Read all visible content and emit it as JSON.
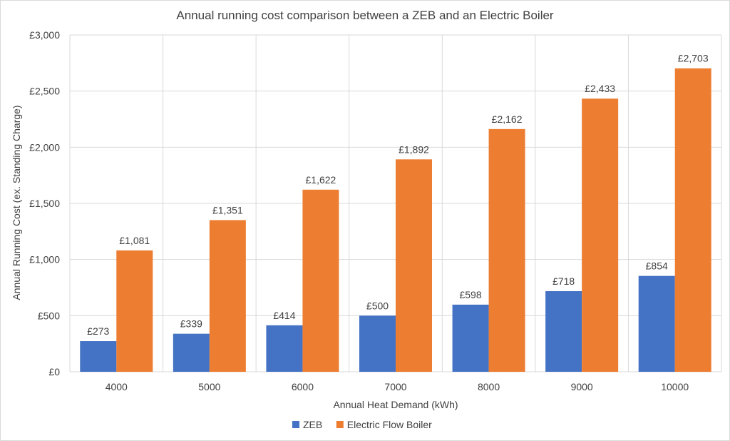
{
  "chart_data": {
    "type": "bar",
    "title": "Annual running cost comparison between a ZEB and an Electric Boiler",
    "xlabel": "Annual Heat Demand (kWh)",
    "ylabel": "Annual Running Cost (ex. Standing Charge)",
    "categories": [
      "4000",
      "5000",
      "6000",
      "7000",
      "8000",
      "9000",
      "10000"
    ],
    "ylim": [
      0,
      3000
    ],
    "yticks": [
      0,
      500,
      1000,
      1500,
      2000,
      2500,
      3000
    ],
    "ytick_labels": [
      "£0",
      "£500",
      "£1,000",
      "£1,500",
      "£2,000",
      "£2,500",
      "£3,000"
    ],
    "grid": true,
    "legend_position": "bottom",
    "series": [
      {
        "name": "ZEB",
        "color": "#4472C4",
        "values": [
          273,
          339,
          414,
          500,
          598,
          718,
          854
        ],
        "labels": [
          "£273",
          "£339",
          "£414",
          "£500",
          "£598",
          "£718",
          "£854"
        ]
      },
      {
        "name": "Electric Flow Boiler",
        "color": "#ED7D31",
        "values": [
          1081,
          1351,
          1622,
          1892,
          2162,
          2433,
          2703
        ],
        "labels": [
          "£1,081",
          "£1,351",
          "£1,622",
          "£1,892",
          "£2,162",
          "£2,433",
          "£2,703"
        ]
      }
    ]
  }
}
